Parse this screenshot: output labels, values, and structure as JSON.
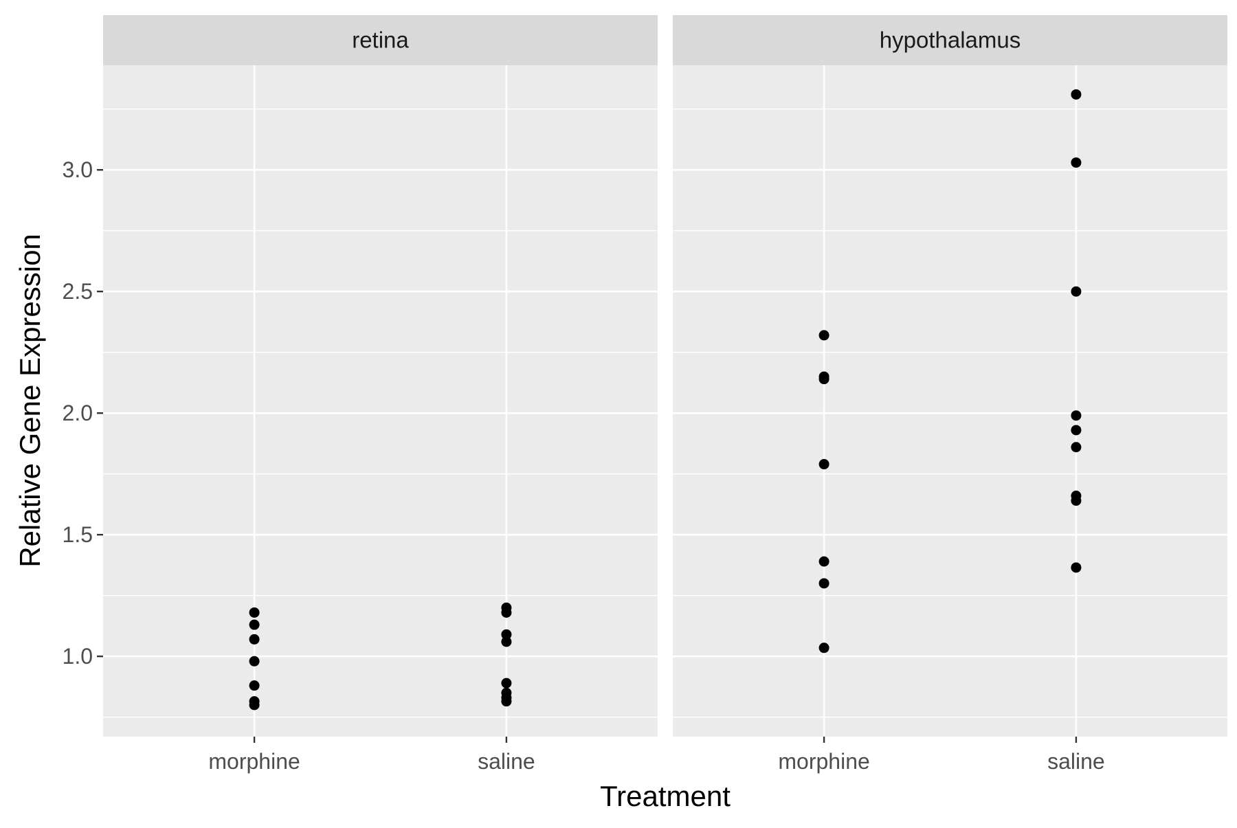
{
  "chart_data": {
    "type": "scatter",
    "xlabel": "Treatment",
    "ylabel": "Relative Gene Expression",
    "ylim": [
      0.67,
      3.43
    ],
    "y_major_ticks": [
      1.0,
      1.5,
      2.0,
      2.5,
      3.0
    ],
    "y_tick_labels": [
      "1.0",
      "1.5",
      "2.0",
      "2.5",
      "3.0"
    ],
    "y_minor_ticks": [
      0.75,
      1.25,
      1.75,
      2.25,
      2.75,
      3.25
    ],
    "categories": [
      "morphine",
      "saline"
    ],
    "grid": true,
    "colors": {
      "panel_background": "#EBEBEB",
      "strip_background": "#D9D9D9",
      "grid": "#FFFFFF",
      "points": "#000000",
      "tick_text": "#4D4D4D"
    },
    "panels": [
      {
        "facet": "retina",
        "points": [
          {
            "x": "morphine",
            "y": 1.18
          },
          {
            "x": "morphine",
            "y": 1.13
          },
          {
            "x": "morphine",
            "y": 1.07
          },
          {
            "x": "morphine",
            "y": 0.98
          },
          {
            "x": "morphine",
            "y": 0.88
          },
          {
            "x": "morphine",
            "y": 0.815
          },
          {
            "x": "morphine",
            "y": 0.8
          },
          {
            "x": "saline",
            "y": 1.2
          },
          {
            "x": "saline",
            "y": 1.18
          },
          {
            "x": "saline",
            "y": 1.09
          },
          {
            "x": "saline",
            "y": 1.06
          },
          {
            "x": "saline",
            "y": 0.89
          },
          {
            "x": "saline",
            "y": 0.85
          },
          {
            "x": "saline",
            "y": 0.83
          },
          {
            "x": "saline",
            "y": 0.815
          }
        ]
      },
      {
        "facet": "hypothalamus",
        "points": [
          {
            "x": "morphine",
            "y": 2.32
          },
          {
            "x": "morphine",
            "y": 2.15
          },
          {
            "x": "morphine",
            "y": 2.14
          },
          {
            "x": "morphine",
            "y": 1.79
          },
          {
            "x": "morphine",
            "y": 1.39
          },
          {
            "x": "morphine",
            "y": 1.3
          },
          {
            "x": "morphine",
            "y": 1.035
          },
          {
            "x": "saline",
            "y": 3.31
          },
          {
            "x": "saline",
            "y": 3.03
          },
          {
            "x": "saline",
            "y": 2.5
          },
          {
            "x": "saline",
            "y": 1.99
          },
          {
            "x": "saline",
            "y": 1.93
          },
          {
            "x": "saline",
            "y": 1.86
          },
          {
            "x": "saline",
            "y": 1.66
          },
          {
            "x": "saline",
            "y": 1.64
          },
          {
            "x": "saline",
            "y": 1.365
          }
        ]
      }
    ]
  }
}
